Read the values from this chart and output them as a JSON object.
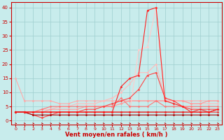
{
  "xlabel": "Vent moyen/en rafales ( km/h )",
  "xlim": [
    -0.5,
    23.5
  ],
  "ylim": [
    -1.5,
    42
  ],
  "yticks": [
    0,
    5,
    10,
    15,
    20,
    25,
    30,
    35,
    40
  ],
  "xticks": [
    0,
    1,
    2,
    3,
    4,
    5,
    6,
    7,
    8,
    9,
    10,
    11,
    12,
    13,
    14,
    15,
    16,
    17,
    18,
    19,
    20,
    21,
    22,
    23
  ],
  "bg_color": "#c8ecec",
  "grid_color": "#9ecece",
  "lines": [
    {
      "x": [
        0,
        1,
        2,
        3,
        4,
        5,
        6,
        7,
        8,
        9,
        10,
        11,
        12,
        13,
        14,
        15,
        16,
        17,
        18,
        19,
        20,
        21,
        22,
        23
      ],
      "y": [
        15,
        7,
        7,
        7,
        7,
        6,
        6,
        7,
        7,
        7,
        7,
        7,
        7,
        7,
        7,
        7,
        7,
        7,
        7,
        7,
        7,
        7,
        7,
        7
      ],
      "color": "#ffaaaa",
      "lw": 0.8,
      "marker": "D",
      "ms": 1.5,
      "zorder": 2
    },
    {
      "x": [
        0,
        1,
        2,
        3,
        4,
        5,
        6,
        7,
        8,
        9,
        10,
        11,
        12,
        13,
        14,
        15,
        16,
        17,
        18,
        19,
        20,
        21,
        22,
        23
      ],
      "y": [
        3,
        3,
        3,
        4,
        4,
        5,
        5,
        6,
        6,
        6,
        7,
        8,
        10,
        13,
        17,
        17,
        20,
        8,
        7,
        7,
        6,
        6,
        6,
        6
      ],
      "color": "#ffbbbb",
      "lw": 0.8,
      "marker": "D",
      "ms": 1.5,
      "zorder": 2
    },
    {
      "x": [
        0,
        1,
        2,
        3,
        4,
        5,
        6,
        7,
        8,
        9,
        10,
        11,
        12,
        13,
        14,
        15,
        16,
        17,
        18,
        19,
        20,
        21,
        22,
        23
      ],
      "y": [
        3,
        3,
        3,
        3,
        4,
        4,
        4,
        4,
        5,
        5,
        5,
        5,
        6,
        7,
        7,
        7,
        7,
        7,
        7,
        7,
        6,
        6,
        7,
        7
      ],
      "color": "#ff9999",
      "lw": 0.8,
      "marker": "D",
      "ms": 1.5,
      "zorder": 2
    },
    {
      "x": [
        0,
        1,
        2,
        3,
        4,
        5,
        6,
        7,
        8,
        9,
        10,
        11,
        12,
        13,
        14,
        15,
        16,
        17,
        18,
        19,
        20,
        21,
        22,
        23
      ],
      "y": [
        3,
        3,
        3,
        3,
        3,
        3,
        3,
        3,
        3,
        3,
        3,
        3,
        3,
        3,
        3,
        3,
        3,
        3,
        3,
        3,
        3,
        3,
        3,
        4
      ],
      "color": "#cc2222",
      "lw": 0.8,
      "marker": "D",
      "ms": 1.5,
      "zorder": 3
    },
    {
      "x": [
        0,
        1,
        2,
        3,
        4,
        5,
        6,
        7,
        8,
        9,
        10,
        11,
        12,
        13,
        14,
        15,
        16,
        17,
        18,
        19,
        20,
        21,
        22,
        23
      ],
      "y": [
        3,
        3,
        2,
        1,
        2,
        3,
        3,
        3,
        4,
        4,
        5,
        6,
        7,
        8,
        11,
        16,
        17,
        8,
        7,
        5,
        4,
        4,
        4,
        4
      ],
      "color": "#ff4444",
      "lw": 0.8,
      "marker": "D",
      "ms": 1.5,
      "zorder": 3
    },
    {
      "x": [
        0,
        1,
        2,
        3,
        4,
        5,
        6,
        7,
        8,
        9,
        10,
        11,
        12,
        13,
        14,
        15,
        16,
        17,
        18,
        19,
        20,
        21,
        22,
        23
      ],
      "y": [
        3,
        3,
        3,
        3,
        3,
        3,
        3,
        3,
        3,
        3,
        3,
        3,
        12,
        15,
        16,
        39,
        40,
        7,
        6,
        5,
        3,
        3,
        3,
        4
      ],
      "color": "#ff2222",
      "lw": 0.8,
      "marker": "D",
      "ms": 1.5,
      "zorder": 4
    },
    {
      "x": [
        0,
        1,
        2,
        3,
        4,
        5,
        6,
        7,
        8,
        9,
        10,
        11,
        12,
        13,
        14,
        15,
        16,
        17,
        18,
        19,
        20,
        21,
        22,
        23
      ],
      "y": [
        3,
        3,
        3,
        3,
        3,
        3,
        3,
        3,
        3,
        3,
        3,
        3,
        3,
        3,
        25,
        26,
        40,
        7,
        7,
        5,
        5,
        3,
        3,
        4
      ],
      "color": "#ffcccc",
      "lw": 0.8,
      "marker": "D",
      "ms": 1.5,
      "zorder": 2
    },
    {
      "x": [
        0,
        1,
        2,
        3,
        4,
        5,
        6,
        7,
        8,
        9,
        10,
        11,
        12,
        13,
        14,
        15,
        16,
        17,
        18,
        19,
        20,
        21,
        22,
        23
      ],
      "y": [
        3,
        3,
        3,
        3,
        3,
        3,
        3,
        3,
        3,
        3,
        3,
        3,
        3,
        3,
        3,
        3,
        3,
        3,
        3,
        3,
        3,
        4,
        3,
        3
      ],
      "color": "#ee3333",
      "lw": 0.8,
      "marker": "D",
      "ms": 1.5,
      "zorder": 3
    },
    {
      "x": [
        0,
        1,
        2,
        3,
        4,
        5,
        6,
        7,
        8,
        9,
        10,
        11,
        12,
        13,
        14,
        15,
        16,
        17,
        18,
        19,
        20,
        21,
        22,
        23
      ],
      "y": [
        3,
        3,
        3,
        4,
        5,
        5,
        5,
        5,
        5,
        5,
        5,
        5,
        8,
        5,
        5,
        5,
        7,
        5,
        5,
        5,
        5,
        5,
        5,
        5
      ],
      "color": "#ff7777",
      "lw": 0.8,
      "marker": "D",
      "ms": 1.5,
      "zorder": 2
    },
    {
      "x": [
        0,
        1,
        2,
        3,
        4,
        5,
        6,
        7,
        8,
        9,
        10,
        11,
        12,
        13,
        14,
        15,
        16,
        17,
        18,
        19,
        20,
        21,
        22,
        23
      ],
      "y": [
        3,
        3,
        2,
        2,
        2,
        2,
        2,
        2,
        2,
        2,
        2,
        2,
        2,
        2,
        2,
        2,
        2,
        2,
        2,
        2,
        2,
        2,
        2,
        2
      ],
      "color": "#aa0000",
      "lw": 0.8,
      "marker": "D",
      "ms": 1.5,
      "zorder": 3
    }
  ],
  "arrow_color": "#cc0000",
  "spine_color": "#cc0000",
  "tick_color": "#cc0000",
  "xlabel_color": "#cc0000",
  "xlabel_fontsize": 6,
  "tick_fontsize_x": 4.5,
  "tick_fontsize_y": 5
}
